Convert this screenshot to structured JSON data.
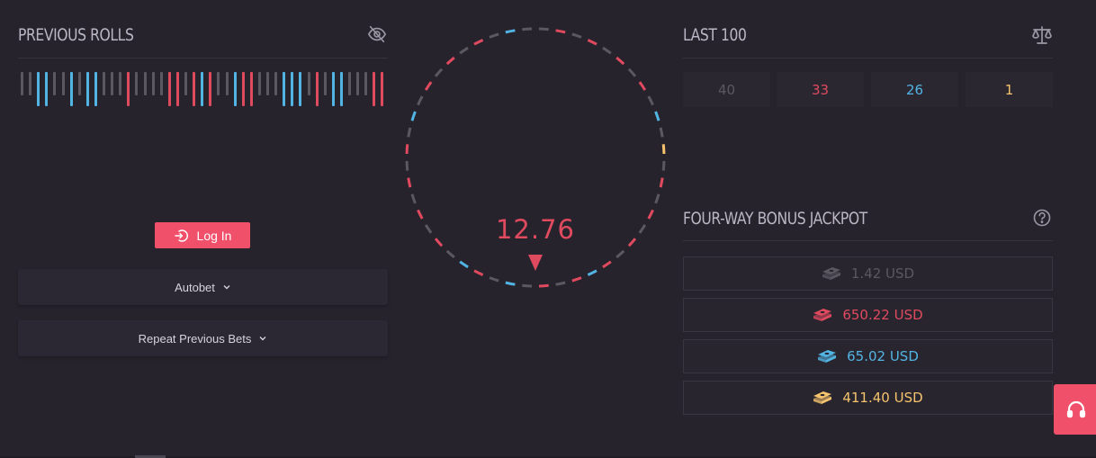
{
  "colors": {
    "grey": "#5b5862",
    "red": "#e04a5f",
    "blue": "#52b4e3",
    "gold": "#f5c46d",
    "accent": "#f0506a"
  },
  "previous_rolls": {
    "title": "PREVIOUS ROLLS",
    "toggle_icon": "eye-slash-icon",
    "rolls": [
      "grey",
      "grey",
      "blue",
      "blue",
      "grey",
      "grey",
      "blue",
      "grey",
      "blue",
      "blue",
      "grey",
      "grey",
      "grey",
      "red",
      "grey",
      "grey",
      "grey",
      "grey",
      "red",
      "red",
      "grey",
      "red",
      "blue",
      "red",
      "grey",
      "grey",
      "blue",
      "red",
      "red",
      "grey",
      "grey",
      "grey",
      "blue",
      "blue",
      "blue",
      "grey",
      "red",
      "grey",
      "blue",
      "blue",
      "grey",
      "grey",
      "grey",
      "red",
      "red"
    ]
  },
  "actions": {
    "login_label": "Log In",
    "login_icon": "sign-in-icon",
    "autobet_label": "Autobet",
    "repeat_label": "Repeat Previous Bets"
  },
  "wheel": {
    "result": "12.76",
    "segments": [
      "grey",
      "red",
      "grey",
      "red",
      "grey",
      "red",
      "grey",
      "red",
      "grey",
      "blue",
      "grey",
      "gold",
      "grey",
      "red",
      "grey",
      "red",
      "grey",
      "red",
      "grey",
      "red",
      "blue",
      "red",
      "grey",
      "red",
      "grey",
      "blue",
      "grey",
      "red",
      "blue",
      "grey",
      "red",
      "grey",
      "red",
      "grey",
      "red",
      "grey",
      "red",
      "grey",
      "blue",
      "grey",
      "red",
      "grey",
      "red",
      "grey",
      "red",
      "grey",
      "blue",
      "grey"
    ]
  },
  "last_100": {
    "title": "LAST 100",
    "icon": "scale-icon",
    "counts": [
      {
        "value": "40",
        "color": "grey"
      },
      {
        "value": "33",
        "color": "red"
      },
      {
        "value": "26",
        "color": "blue"
      },
      {
        "value": "1",
        "color": "gold"
      }
    ]
  },
  "jackpot": {
    "title": "FOUR-WAY BONUS JACKPOT",
    "icon": "question-circle-icon",
    "rows": [
      {
        "amount": "1.42 USD",
        "color": "grey"
      },
      {
        "amount": "650.22 USD",
        "color": "red"
      },
      {
        "amount": "65.02 USD",
        "color": "blue"
      },
      {
        "amount": "411.40 USD",
        "color": "gold"
      }
    ]
  },
  "support": {
    "icon": "headset-icon"
  }
}
